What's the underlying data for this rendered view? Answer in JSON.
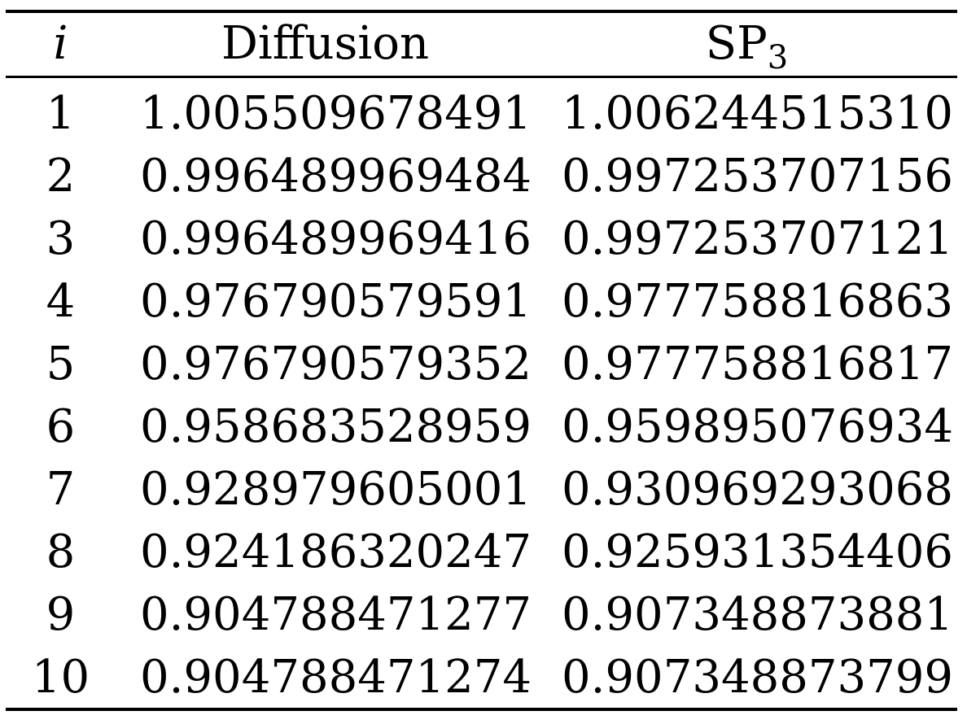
{
  "table": {
    "headers": {
      "index": "i",
      "diffusion": "Diffusion",
      "sp3_base": "SP",
      "sp3_sub": "3"
    },
    "rows": [
      {
        "i": "1",
        "diffusion": "1.005509678491",
        "sp3": "1.006244515310"
      },
      {
        "i": "2",
        "diffusion": "0.996489969484",
        "sp3": "0.997253707156"
      },
      {
        "i": "3",
        "diffusion": "0.996489969416",
        "sp3": "0.997253707121"
      },
      {
        "i": "4",
        "diffusion": "0.976790579591",
        "sp3": "0.977758816863"
      },
      {
        "i": "5",
        "diffusion": "0.976790579352",
        "sp3": "0.977758816817"
      },
      {
        "i": "6",
        "diffusion": "0.958683528959",
        "sp3": "0.959895076934"
      },
      {
        "i": "7",
        "diffusion": "0.928979605001",
        "sp3": "0.930969293068"
      },
      {
        "i": "8",
        "diffusion": "0.924186320247",
        "sp3": "0.925931354406"
      },
      {
        "i": "9",
        "diffusion": "0.904788471277",
        "sp3": "0.907348873881"
      },
      {
        "i": "10",
        "diffusion": "0.904788471274",
        "sp3": "0.907348873799"
      }
    ]
  }
}
